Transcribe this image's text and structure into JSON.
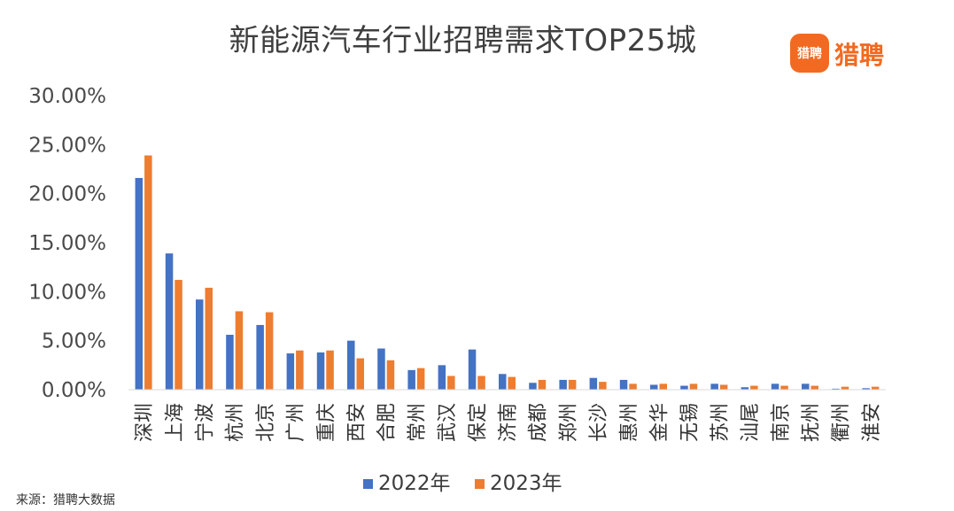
{
  "header": {
    "title": "新能源汽车行业招聘需求TOP25城",
    "logo_icon_text": "猎聘",
    "logo_text": "猎聘"
  },
  "footer": {
    "source": "来源：猎聘大数据"
  },
  "colors": {
    "series_2022": "#4472c4",
    "series_2023": "#ed7d31",
    "axis": "#d9d9d9",
    "brand": "#f26a21"
  },
  "chart_data": {
    "type": "bar",
    "title": "新能源汽车行业招聘需求TOP25城",
    "xlabel": "",
    "ylabel": "",
    "ylim": [
      0,
      30
    ],
    "y_ticks": [
      "0.00%",
      "5.00%",
      "10.00%",
      "15.00%",
      "20.00%",
      "25.00%",
      "30.00%"
    ],
    "grid": false,
    "legend_position": "bottom",
    "categories": [
      "深圳",
      "上海",
      "宁波",
      "杭州",
      "北京",
      "广州",
      "重庆",
      "西安",
      "合肥",
      "常州",
      "武汉",
      "保定",
      "济南",
      "成都",
      "郑州",
      "长沙",
      "惠州",
      "金华",
      "无锡",
      "苏州",
      "汕尾",
      "南京",
      "抚州",
      "衢州",
      "淮安"
    ],
    "series": [
      {
        "name": "2022年",
        "values": [
          21.6,
          13.9,
          9.2,
          5.6,
          6.6,
          3.7,
          3.8,
          5.0,
          4.2,
          2.0,
          2.5,
          4.1,
          1.6,
          0.7,
          1.0,
          1.2,
          1.0,
          0.5,
          0.4,
          0.6,
          0.25,
          0.6,
          0.6,
          0.1,
          0.15
        ]
      },
      {
        "name": "2023年",
        "values": [
          23.9,
          11.2,
          10.4,
          8.0,
          7.9,
          4.0,
          4.0,
          3.2,
          3.0,
          2.2,
          1.4,
          1.4,
          1.3,
          1.0,
          1.0,
          0.8,
          0.6,
          0.6,
          0.6,
          0.5,
          0.4,
          0.4,
          0.4,
          0.3,
          0.3
        ]
      }
    ]
  }
}
